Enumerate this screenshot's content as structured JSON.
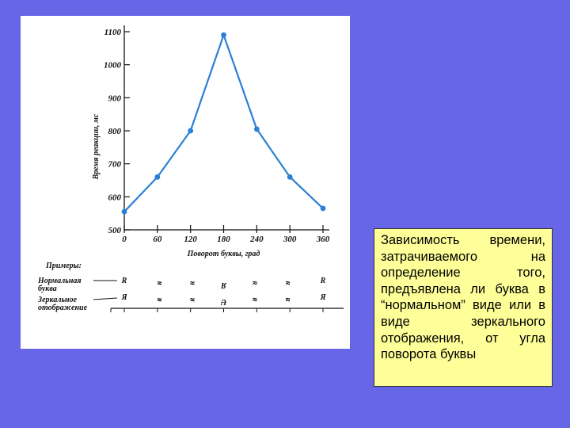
{
  "chart_data": {
    "type": "line",
    "x": [
      0,
      60,
      120,
      180,
      240,
      300,
      360
    ],
    "y": [
      555,
      660,
      800,
      1090,
      805,
      660,
      565
    ],
    "xticks": [
      "0",
      "60",
      "120",
      "180",
      "240",
      "300",
      "360"
    ],
    "yticks": [
      "500",
      "600",
      "700",
      "800",
      "900",
      "1000",
      "1100"
    ],
    "xlabel": "Поворот буквы, град",
    "ylabel": "Время реакции, мс",
    "xlim": [
      0,
      360
    ],
    "ylim": [
      500,
      1100
    ],
    "grid": false,
    "line_color": "#2a7fd6"
  },
  "examples": {
    "title": "Примеры:",
    "normal_label": "Нормальная буква",
    "mirror_label": "Зеркальное отображение",
    "normal_glyphs": [
      "R",
      "ᴚ",
      "ᴚ",
      "Я",
      "ᴚ",
      "ᴚ",
      "R"
    ],
    "mirror_glyphs": [
      "Я",
      "ᴚ",
      "ᴚ",
      "Ʉ",
      "ᴚ",
      "ᴚ",
      "Я"
    ]
  },
  "caption": {
    "text": "Зависимость времени, затрачиваемого на определение того, предъявлена ли буква в “нормальном” виде или в виде зеркального отображения, от угла поворота буквы"
  },
  "colors": {
    "background": "#6666e6",
    "panel": "#ffffff",
    "caption_bg": "#ffff99"
  }
}
